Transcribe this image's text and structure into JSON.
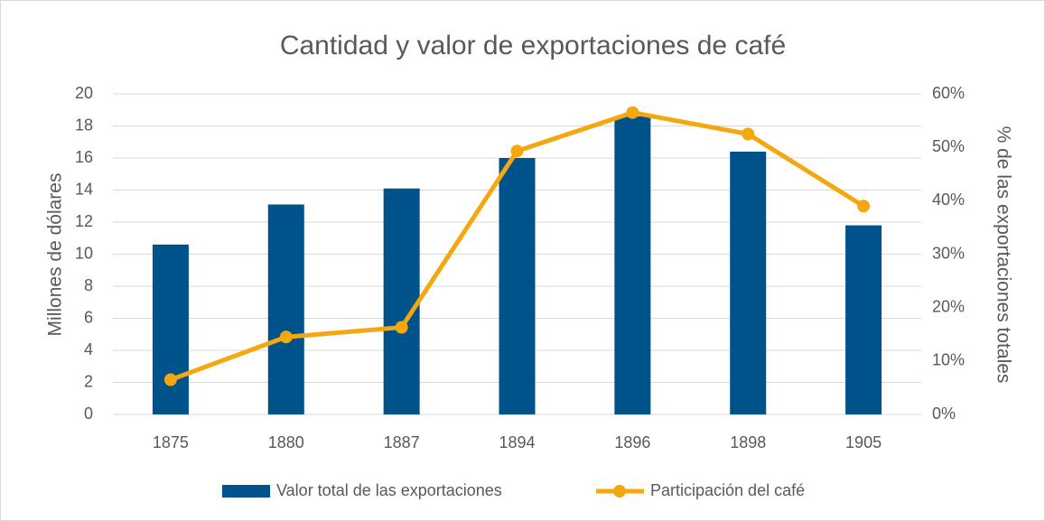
{
  "chart_data": {
    "type": "bar",
    "title": "Cantidad y valor de exportaciones de café",
    "categories": [
      "1875",
      "1880",
      "1887",
      "1894",
      "1896",
      "1898",
      "1905"
    ],
    "series": [
      {
        "name": "Valor total de las exportaciones",
        "type": "bar",
        "color": "#00538a",
        "values": [
          10.6,
          13.1,
          14.1,
          16.0,
          18.6,
          16.4,
          11.8
        ]
      },
      {
        "name": "Participación del café",
        "type": "line",
        "axis": "y2",
        "color": "#f5a70f",
        "values": [
          6.5,
          14.5,
          16.3,
          49.3,
          56.5,
          52.5,
          39
        ]
      }
    ],
    "ylabel": "Millones de dólares",
    "y2label": "% de las exportaciones totales",
    "ylim": [
      0,
      20
    ],
    "yticks": [
      0,
      2,
      4,
      6,
      8,
      10,
      12,
      14,
      16,
      18,
      20
    ],
    "y2lim": [
      0,
      60
    ],
    "y2ticks": [
      {
        "value": 0,
        "label": "0%"
      },
      {
        "value": 10,
        "label": "10%"
      },
      {
        "value": 20,
        "label": "20%"
      },
      {
        "value": 30,
        "label": "30%"
      },
      {
        "value": 40,
        "label": "40%"
      },
      {
        "value": 50,
        "label": "50%"
      },
      {
        "value": 60,
        "label": "60%"
      }
    ],
    "grid": true,
    "legend": "bottom"
  }
}
